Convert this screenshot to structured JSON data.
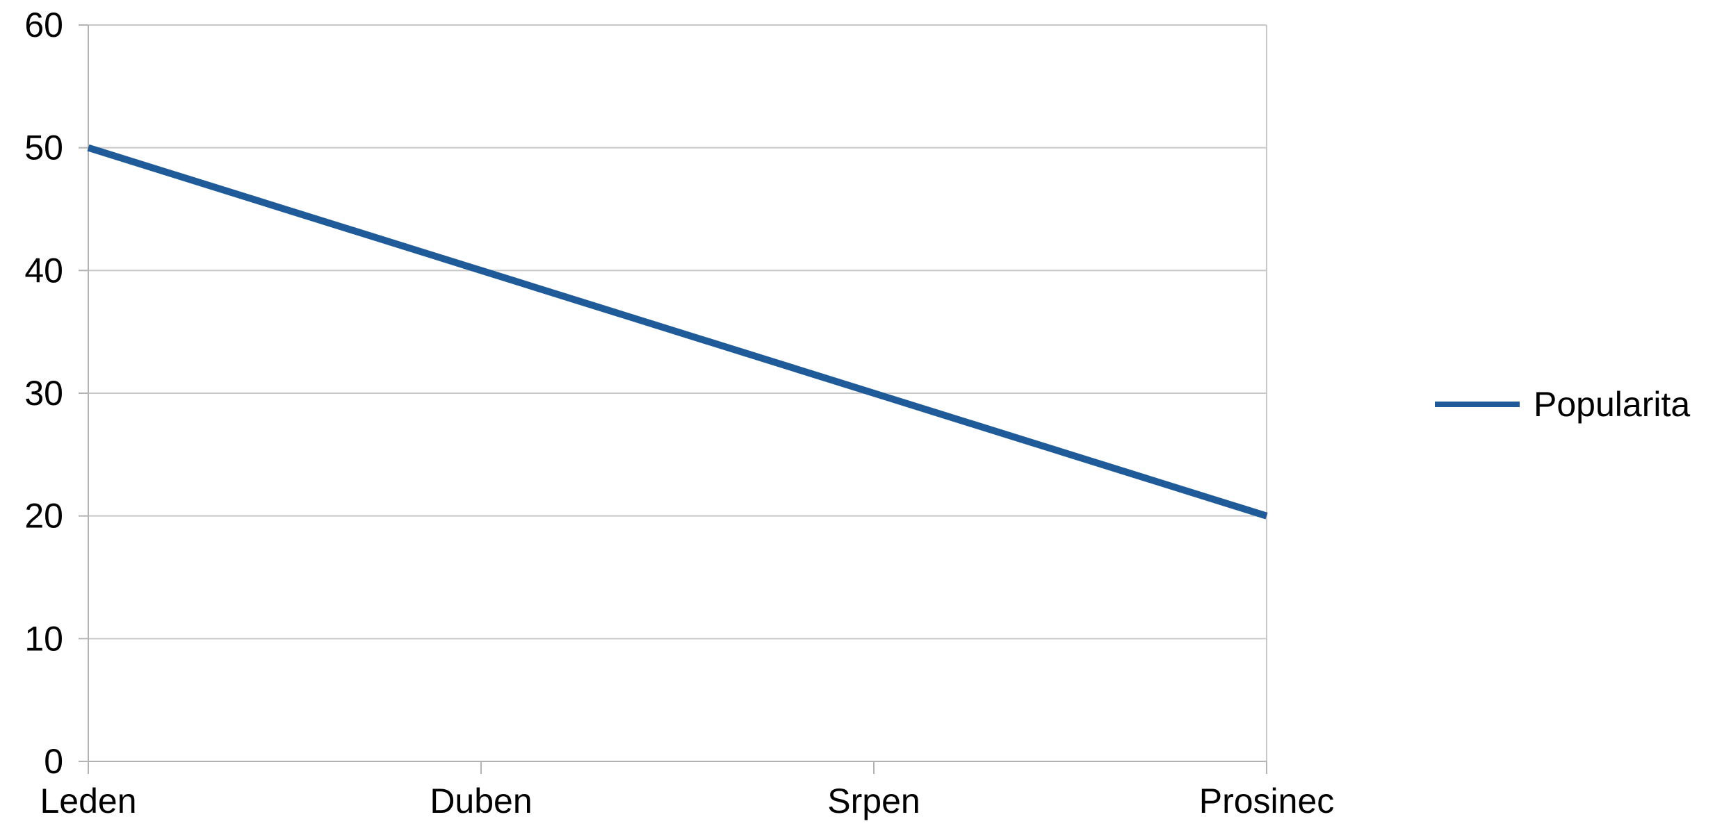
{
  "chart_data": {
    "type": "line",
    "title": "",
    "xlabel": "",
    "ylabel": "",
    "categories": [
      "Leden",
      "Duben",
      "Srpen",
      "Prosinec"
    ],
    "series": [
      {
        "name": "Popularita",
        "values": [
          50,
          40,
          30,
          20
        ],
        "color": "#1f5a99"
      }
    ],
    "ylim": [
      0,
      60
    ],
    "yticks": [
      0,
      10,
      20,
      30,
      40,
      50,
      60
    ],
    "grid": true,
    "legend": "right"
  }
}
